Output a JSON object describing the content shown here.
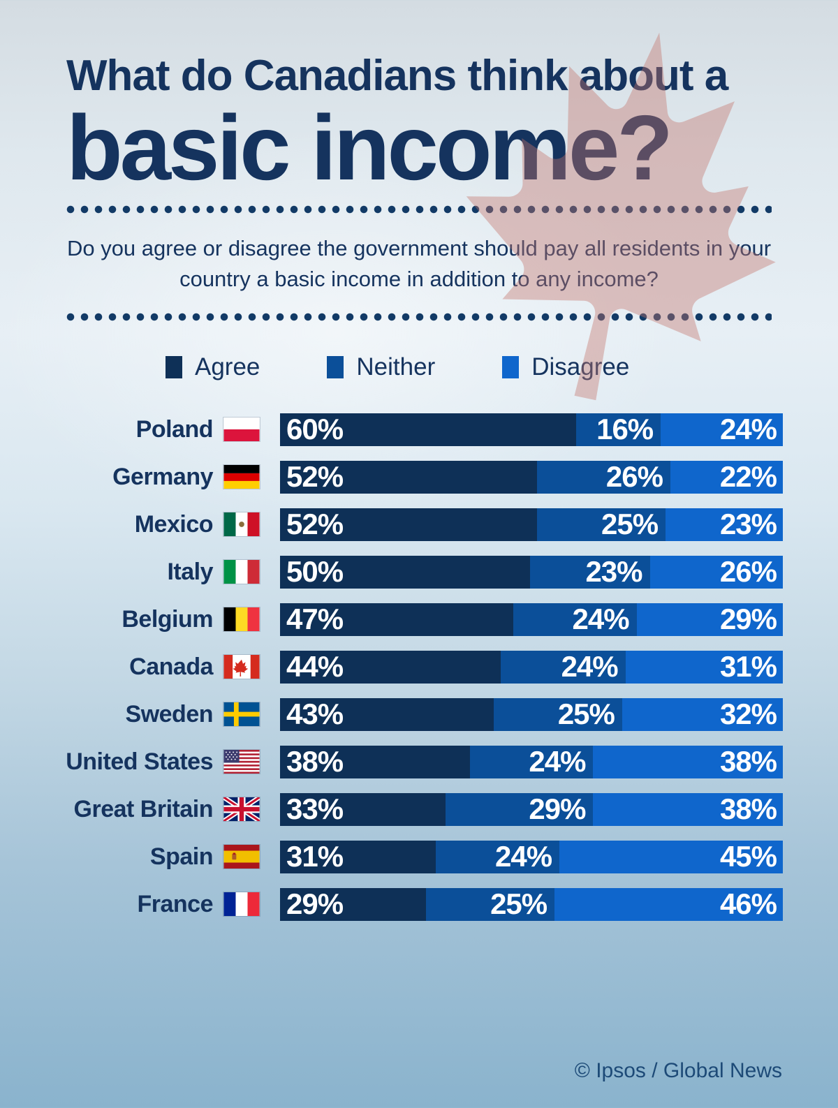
{
  "title": {
    "line1": "What do Canadians think about a",
    "line2": "basic income?"
  },
  "subtitle": "Do you agree or disagree the government should pay all residents in your country a basic income in addition to any income?",
  "legend": [
    {
      "label": "Agree",
      "color": "#0e3057"
    },
    {
      "label": "Neither",
      "color": "#0b4f99"
    },
    {
      "label": "Disagree",
      "color": "#0f66cc"
    }
  ],
  "colors": {
    "agree": "#0e3057",
    "neither": "#0b4f99",
    "disagree": "#0f66cc",
    "text_navy": "#15335e",
    "background_top": "#d4dce2",
    "background_bottom": "#8ab3cd",
    "watermark_leaf": "#c4756c"
  },
  "footer": {
    "text": "© Ipsos / Global News"
  },
  "rows": [
    {
      "country": "Poland",
      "flag": "poland",
      "agree": 60,
      "neither": 16,
      "disagree": 24
    },
    {
      "country": "Germany",
      "flag": "germany",
      "agree": 52,
      "neither": 26,
      "disagree": 22
    },
    {
      "country": "Mexico",
      "flag": "mexico",
      "agree": 52,
      "neither": 25,
      "disagree": 23
    },
    {
      "country": "Italy",
      "flag": "italy",
      "agree": 50,
      "neither": 23,
      "disagree": 26
    },
    {
      "country": "Belgium",
      "flag": "belgium",
      "agree": 47,
      "neither": 24,
      "disagree": 29
    },
    {
      "country": "Canada",
      "flag": "canada",
      "agree": 44,
      "neither": 24,
      "disagree": 31
    },
    {
      "country": "Sweden",
      "flag": "sweden",
      "agree": 43,
      "neither": 25,
      "disagree": 32
    },
    {
      "country": "United States",
      "flag": "usa",
      "agree": 38,
      "neither": 24,
      "disagree": 38
    },
    {
      "country": "Great Britain",
      "flag": "gb",
      "agree": 33,
      "neither": 29,
      "disagree": 38
    },
    {
      "country": "Spain",
      "flag": "spain",
      "agree": 31,
      "neither": 24,
      "disagree": 45
    },
    {
      "country": "France",
      "flag": "france",
      "agree": 29,
      "neither": 25,
      "disagree": 46
    }
  ],
  "chart_data": {
    "type": "bar",
    "stacked": true,
    "orientation": "horizontal",
    "title": "What do Canadians think about a basic income?",
    "question": "Do you agree or disagree the government should pay all residents in your country a basic income in addition to any income?",
    "categories": [
      "Poland",
      "Germany",
      "Mexico",
      "Italy",
      "Belgium",
      "Canada",
      "Sweden",
      "United States",
      "Great Britain",
      "Spain",
      "France"
    ],
    "series": [
      {
        "name": "Agree",
        "values": [
          60,
          52,
          52,
          50,
          47,
          44,
          43,
          38,
          33,
          31,
          29
        ]
      },
      {
        "name": "Neither",
        "values": [
          16,
          26,
          25,
          23,
          24,
          24,
          25,
          24,
          29,
          24,
          25
        ]
      },
      {
        "name": "Disagree",
        "values": [
          24,
          22,
          23,
          26,
          29,
          31,
          32,
          38,
          38,
          45,
          46
        ]
      }
    ],
    "value_suffix": "%",
    "xlim": [
      0,
      100
    ],
    "legend_position": "top",
    "grid": false,
    "source": "© Ipsos / Global News"
  }
}
